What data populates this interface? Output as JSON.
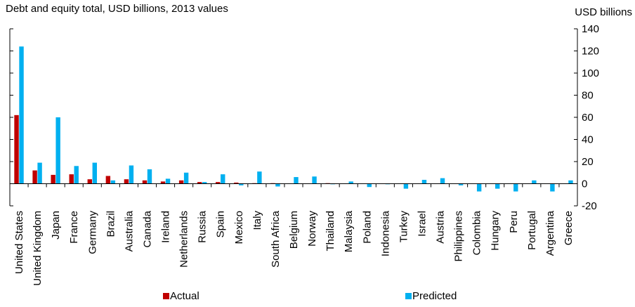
{
  "chart_data": {
    "type": "bar",
    "title": "Debt and equity total, USD billions, 2013 values",
    "ylabel": "USD billions",
    "ylim": [
      -20,
      140
    ],
    "yticks": [
      -20,
      0,
      20,
      40,
      60,
      80,
      100,
      120,
      140
    ],
    "grid": false,
    "legend_position": "bottom",
    "categories": [
      "United States",
      "United Kingdom",
      "Japan",
      "France",
      "Germany",
      "Brazil",
      "Australia",
      "Canada",
      "Ireland",
      "Netherlands",
      "Russia",
      "Spain",
      "Mexico",
      "Italy",
      "South Africa",
      "Belgium",
      "Norway",
      "Thailand",
      "Malaysia",
      "Poland",
      "Indonesia",
      "Turkey",
      "Israel",
      "Austria",
      "Philippines",
      "Colombia",
      "Hungary",
      "Peru",
      "Portugal",
      "Argentina",
      "Greece"
    ],
    "series": [
      {
        "name": "Actual",
        "color": "#c00000",
        "values": [
          62,
          12,
          8,
          8.5,
          4,
          7,
          4,
          3,
          2,
          3,
          1.5,
          1.5,
          1,
          0.5,
          0.5,
          0.3,
          0.3,
          0.5,
          0.3,
          0.3,
          0.3,
          0.3,
          0.3,
          0.3,
          0.3,
          0.3,
          0.3,
          0.3,
          0.3,
          0.3,
          0.3
        ]
      },
      {
        "name": "Predicted",
        "color": "#00b0f0",
        "values": [
          124,
          19,
          60,
          16,
          19,
          3,
          16.5,
          13,
          4.5,
          10,
          1.5,
          8.5,
          -1.5,
          11,
          -2.5,
          6,
          6.5,
          -0.5,
          2,
          -3,
          -0.5,
          -4.5,
          3.5,
          5,
          -1.5,
          -7,
          -4.5,
          -7,
          3,
          -7,
          3
        ]
      }
    ]
  }
}
